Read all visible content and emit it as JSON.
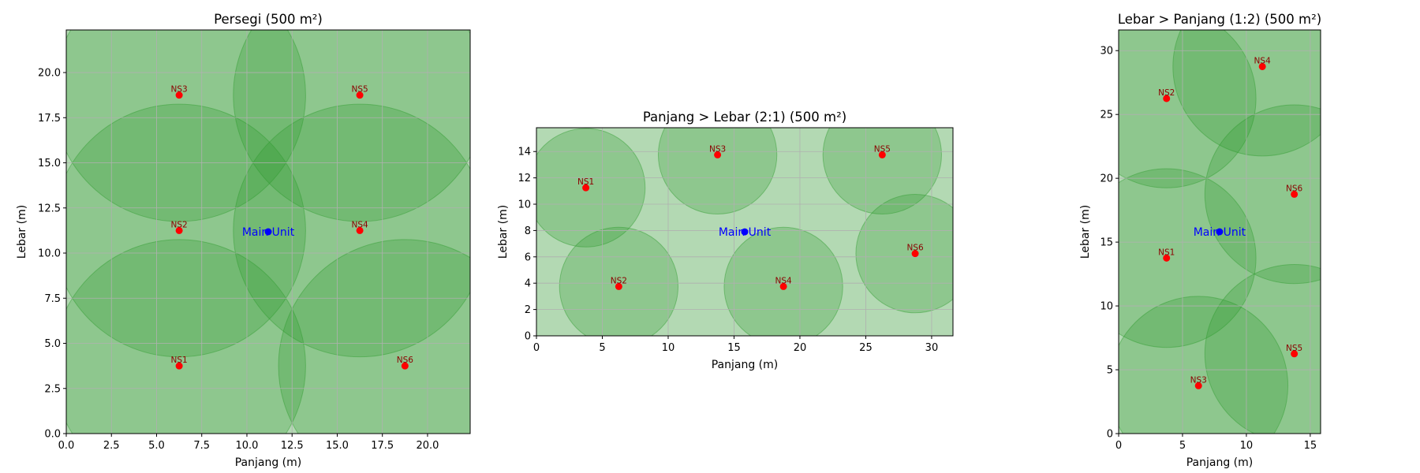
{
  "colors": {
    "fill": "#b3d9b3",
    "coverage": "#2e9b2e",
    "grid": "#b0b0b0",
    "sensor": "#ff0000",
    "sensor_label": "#8b0000",
    "main": "#0000ff"
  },
  "chart_data": [
    {
      "type": "scatter",
      "title": "Persegi (500 m²)",
      "xlabel": "Panjang (m)",
      "ylabel": "Lebar (m)",
      "xlim": [
        0,
        22.36
      ],
      "ylim": [
        0,
        22.36
      ],
      "xticks": [
        0,
        2.5,
        5,
        7.5,
        10,
        12.5,
        15,
        17.5,
        20
      ],
      "xtick_labels": [
        "0.0",
        "2.5",
        "5.0",
        "7.5",
        "10.0",
        "12.5",
        "15.0",
        "17.5",
        "20.0"
      ],
      "yticks": [
        0,
        2.5,
        5,
        7.5,
        10,
        12.5,
        15,
        17.5,
        20
      ],
      "ytick_labels": [
        "0.0",
        "2.5",
        "5.0",
        "7.5",
        "10.0",
        "12.5",
        "15.0",
        "17.5",
        "20.0"
      ],
      "grid": true,
      "main_unit": {
        "label": "Main Unit",
        "x": 11.18,
        "y": 11.18
      },
      "sensors": [
        {
          "label": "NS1",
          "x": 6.25,
          "y": 3.75,
          "r": 7.0
        },
        {
          "label": "NS2",
          "x": 6.25,
          "y": 11.25,
          "r": 7.0
        },
        {
          "label": "NS3",
          "x": 6.25,
          "y": 18.75,
          "r": 7.0
        },
        {
          "label": "NS4",
          "x": 16.25,
          "y": 11.25,
          "r": 7.0
        },
        {
          "label": "NS5",
          "x": 16.25,
          "y": 18.75,
          "r": 7.0
        },
        {
          "label": "NS6",
          "x": 18.75,
          "y": 3.75,
          "r": 7.0
        }
      ]
    },
    {
      "type": "scatter",
      "title": "Panjang > Lebar (2:1) (500 m²)",
      "xlabel": "Panjang (m)",
      "ylabel": "Lebar (m)",
      "xlim": [
        0,
        31.62
      ],
      "ylim": [
        0,
        15.81
      ],
      "xticks": [
        0,
        5,
        10,
        15,
        20,
        25,
        30
      ],
      "xtick_labels": [
        "0",
        "5",
        "10",
        "15",
        "20",
        "25",
        "30"
      ],
      "yticks": [
        0,
        2,
        4,
        6,
        8,
        10,
        12,
        14
      ],
      "ytick_labels": [
        "0",
        "2",
        "4",
        "6",
        "8",
        "10",
        "12",
        "14"
      ],
      "grid": true,
      "main_unit": {
        "label": "Main Unit",
        "x": 15.81,
        "y": 7.9
      },
      "sensors": [
        {
          "label": "NS1",
          "x": 3.75,
          "y": 11.25,
          "r": 4.5
        },
        {
          "label": "NS2",
          "x": 6.25,
          "y": 3.75,
          "r": 4.5
        },
        {
          "label": "NS3",
          "x": 13.75,
          "y": 13.75,
          "r": 4.5
        },
        {
          "label": "NS4",
          "x": 18.75,
          "y": 3.75,
          "r": 4.5
        },
        {
          "label": "NS5",
          "x": 26.25,
          "y": 13.75,
          "r": 4.5
        },
        {
          "label": "NS6",
          "x": 28.75,
          "y": 6.25,
          "r": 4.5
        }
      ]
    },
    {
      "type": "scatter",
      "title": "Lebar > Panjang (1:2) (500 m²)",
      "xlabel": "Panjang (m)",
      "ylabel": "Lebar (m)",
      "xlim": [
        0,
        15.81
      ],
      "ylim": [
        0,
        31.62
      ],
      "xticks": [
        0,
        5,
        10,
        15
      ],
      "xtick_labels": [
        "0",
        "5",
        "10",
        "15"
      ],
      "yticks": [
        0,
        5,
        10,
        15,
        20,
        25,
        30
      ],
      "ytick_labels": [
        "0",
        "5",
        "10",
        "15",
        "20",
        "25",
        "30"
      ],
      "grid": true,
      "main_unit": {
        "label": "Main Unit",
        "x": 7.9,
        "y": 15.81
      },
      "sensors": [
        {
          "label": "NS1",
          "x": 3.75,
          "y": 13.75,
          "r": 7.0
        },
        {
          "label": "NS2",
          "x": 3.75,
          "y": 26.25,
          "r": 7.0
        },
        {
          "label": "NS3",
          "x": 6.25,
          "y": 3.75,
          "r": 7.0
        },
        {
          "label": "NS4",
          "x": 11.25,
          "y": 28.75,
          "r": 7.0
        },
        {
          "label": "NS5",
          "x": 13.75,
          "y": 6.25,
          "r": 7.0
        },
        {
          "label": "NS6",
          "x": 13.75,
          "y": 18.75,
          "r": 7.0
        }
      ]
    }
  ]
}
